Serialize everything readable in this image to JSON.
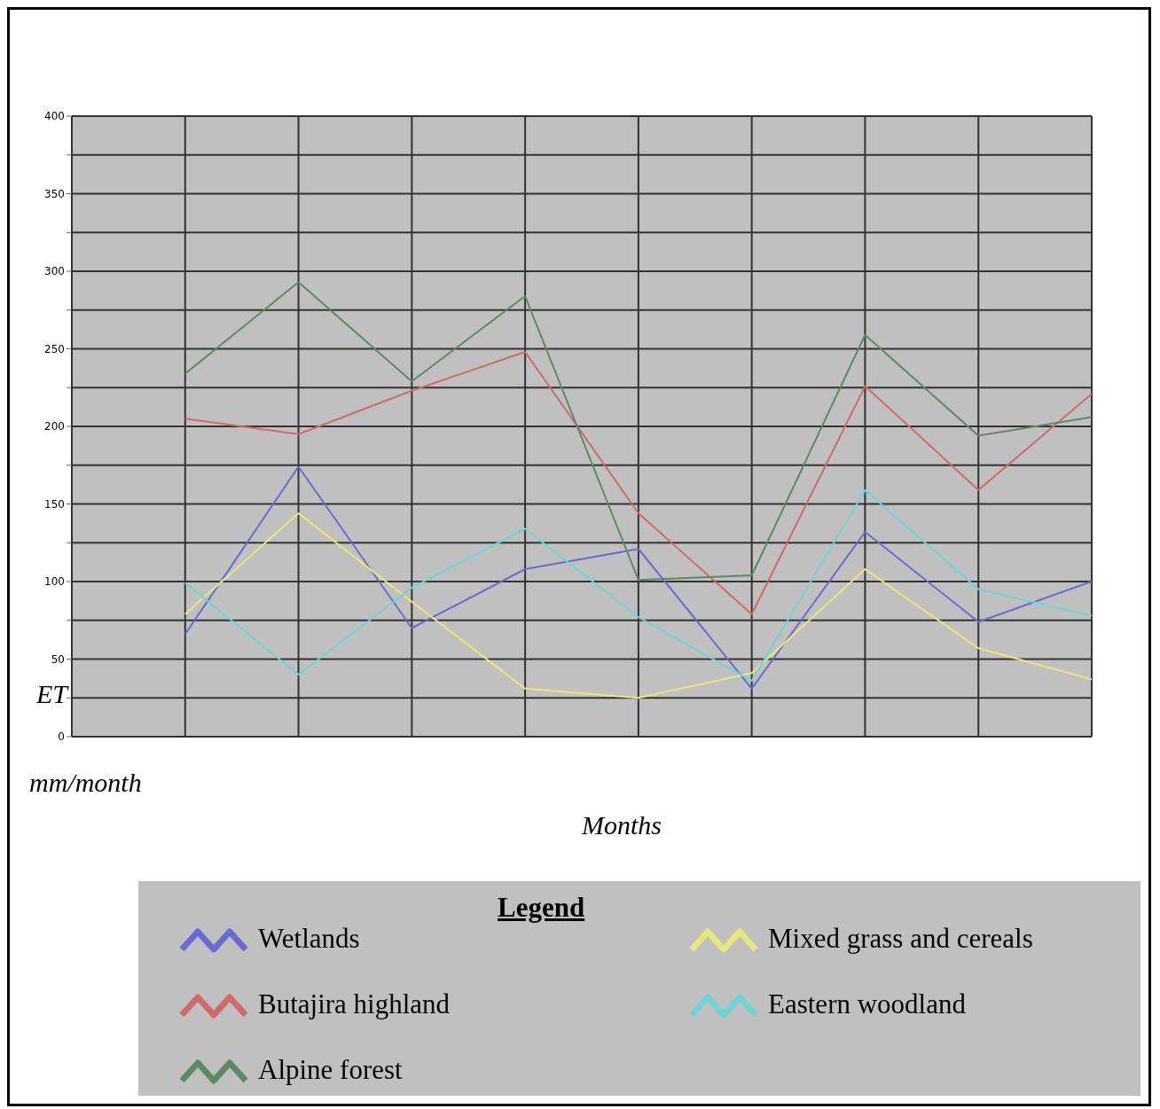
{
  "chart_data": {
    "type": "line",
    "xlabel": "Months",
    "ylabel": "ET mm/month",
    "legend_title": "Legend",
    "legend": "bottom",
    "grid": true,
    "marker": "none",
    "tick_labels": "y",
    "categories": [
      null,
      null,
      null,
      null,
      null,
      null,
      null,
      null,
      null,
      null
    ],
    "ylim": [
      0,
      400
    ],
    "yticks": [
      0,
      {
        "value": 25,
        "label": null
      },
      50,
      {
        "value": 75,
        "label": null
      },
      100,
      {
        "value": 125,
        "label": null
      },
      150,
      {
        "value": 175,
        "label": null
      },
      200,
      {
        "value": 225,
        "label": null
      },
      250,
      {
        "value": 275,
        "label": null
      },
      300,
      {
        "value": 325,
        "label": null
      },
      350,
      {
        "value": 375,
        "label": null
      },
      400
    ],
    "series": [
      {
        "name": "Wetlands",
        "color": "#6a6ad0",
        "values": [
          null,
          66,
          174,
          70,
          108,
          121,
          31,
          132,
          74,
          100
        ]
      },
      {
        "name": "Butajira highland",
        "color": "#d06a6a",
        "values": [
          null,
          205,
          195,
          223,
          248,
          144,
          79,
          226,
          159,
          221
        ]
      },
      {
        "name": "Alpine forest",
        "color": "#5a8a66",
        "values": [
          null,
          234,
          293,
          229,
          284,
          101,
          104,
          259,
          194,
          206
        ]
      },
      {
        "name": "Mixed grass and cereals",
        "color": "#e8e87a",
        "values": [
          null,
          79,
          144,
          87,
          31,
          25,
          41,
          108,
          57,
          37
        ]
      },
      {
        "name": "Eastern woodland",
        "color": "#6ed4d4",
        "values": [
          null,
          99,
          40,
          96,
          134,
          77,
          36,
          159,
          95,
          78
        ]
      }
    ]
  }
}
